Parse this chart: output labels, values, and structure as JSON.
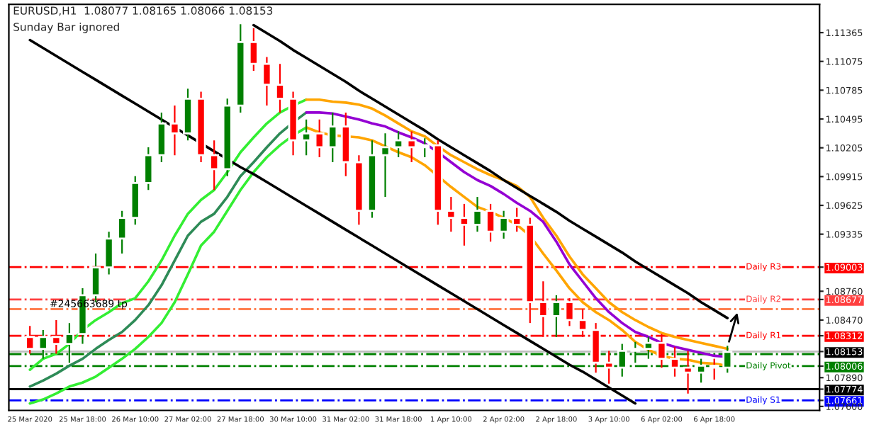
{
  "chart_data": {
    "type": "candlestick",
    "title": "EURUSD,H1  1.08077 1.08165 1.08066 1.08153",
    "subtitle": "Sunday Bar ignored",
    "categories": [
      "25 Mar 2020",
      null,
      null,
      null,
      "25 Mar 18:00",
      null,
      null,
      null,
      "26 Mar 10:00",
      null,
      null,
      null,
      "27 Mar 02:00",
      null,
      null,
      null,
      "27 Mar 18:00",
      null,
      null,
      null,
      "30 Mar 10:00",
      null,
      null,
      null,
      "31 Mar 02:00",
      null,
      null,
      null,
      "31 Mar 18:00",
      null,
      null,
      null,
      "1 Apr 10:00",
      null,
      null,
      null,
      "2 Apr 02:00",
      null,
      null,
      null,
      "2 Apr 18:00",
      null,
      null,
      null,
      "3 Apr 10:00",
      null,
      null,
      null,
      "6 Apr 02:00",
      null,
      null,
      null,
      "6 Apr 18:00",
      null
    ],
    "ohlc": [
      [
        1.083,
        1.0841,
        1.0813,
        1.0818
      ],
      [
        1.0818,
        1.0837,
        1.0808,
        1.083
      ],
      [
        1.083,
        1.0847,
        1.0813,
        1.0823
      ],
      [
        1.0823,
        1.0844,
        1.0804,
        1.0833
      ],
      [
        1.0833,
        1.0879,
        1.0823,
        1.0872
      ],
      [
        1.0872,
        1.0914,
        1.0865,
        1.09
      ],
      [
        1.09,
        1.0936,
        1.0893,
        1.0929
      ],
      [
        1.0929,
        1.0957,
        1.0914,
        1.095
      ],
      [
        1.095,
        1.0992,
        1.0943,
        1.0985
      ],
      [
        1.0985,
        1.1021,
        1.0978,
        1.1013
      ],
      [
        1.1013,
        1.1056,
        1.1006,
        1.1045
      ],
      [
        1.1045,
        1.1063,
        1.1013,
        1.1035
      ],
      [
        1.1035,
        1.108,
        1.1028,
        1.107
      ],
      [
        1.107,
        1.1077,
        1.1006,
        1.1013
      ],
      [
        1.1013,
        1.1028,
        1.0978,
        1.0999
      ],
      [
        1.0999,
        1.107,
        1.0992,
        1.1063
      ],
      [
        1.1063,
        1.1145,
        1.1056,
        1.1127
      ],
      [
        1.1127,
        1.1141,
        1.1098,
        1.1105
      ],
      [
        1.1105,
        1.1112,
        1.1063,
        1.1084
      ],
      [
        1.1084,
        1.1105,
        1.1056,
        1.107
      ],
      [
        1.107,
        1.1077,
        1.1013,
        1.1028
      ],
      [
        1.1028,
        1.1049,
        1.1013,
        1.1035
      ],
      [
        1.1035,
        1.1049,
        1.1011,
        1.1021
      ],
      [
        1.1021,
        1.1056,
        1.1006,
        1.1042
      ],
      [
        1.1042,
        1.1056,
        1.0992,
        1.1006
      ],
      [
        1.1006,
        1.1013,
        1.0943,
        1.0957
      ],
      [
        1.0957,
        1.1028,
        1.095,
        1.1013
      ],
      [
        1.1013,
        1.1035,
        1.0971,
        1.1021
      ],
      [
        1.1021,
        1.1037,
        1.1011,
        1.1028
      ],
      [
        1.1028,
        1.1037,
        1.1006,
        1.1021
      ],
      [
        1.1021,
        1.103,
        1.1011,
        1.1023
      ],
      [
        1.1023,
        1.1028,
        1.0943,
        1.0957
      ],
      [
        1.0957,
        1.0971,
        1.0936,
        1.095
      ],
      [
        1.095,
        1.0964,
        1.0922,
        1.0943
      ],
      [
        1.0943,
        1.0971,
        1.0936,
        1.0957
      ],
      [
        1.0957,
        1.0964,
        1.0926,
        1.0936
      ],
      [
        1.0936,
        1.0957,
        1.0929,
        1.095
      ],
      [
        1.095,
        1.096,
        1.0936,
        1.0943
      ],
      [
        1.0943,
        1.095,
        1.0844,
        1.0865
      ],
      [
        1.0865,
        1.0886,
        1.083,
        1.0851
      ],
      [
        1.0851,
        1.0872,
        1.083,
        1.0865
      ],
      [
        1.0865,
        1.0869,
        1.0841,
        1.0847
      ],
      [
        1.0847,
        1.0858,
        1.083,
        1.0837
      ],
      [
        1.0837,
        1.0844,
        1.0794,
        1.0804
      ],
      [
        1.0804,
        1.0816,
        1.0783,
        1.0799
      ],
      [
        1.0799,
        1.0823,
        1.079,
        1.0816
      ],
      [
        1.0816,
        1.0825,
        1.0804,
        1.0818
      ],
      [
        1.0818,
        1.083,
        1.0808,
        1.0824
      ],
      [
        1.0824,
        1.0833,
        1.0799,
        1.0808
      ],
      [
        1.0808,
        1.082,
        1.079,
        1.0799
      ],
      [
        1.0799,
        1.0816,
        1.0773,
        1.0794
      ],
      [
        1.0794,
        1.0808,
        1.0784,
        1.0801
      ],
      [
        1.0801,
        1.0808,
        1.0787,
        1.0799
      ],
      [
        1.0799,
        1.0821,
        1.0794,
        1.0815
      ]
    ],
    "colors": [
      "#ff0000",
      "#008000",
      "#ff0000",
      "#008000",
      "#008000",
      "#008000",
      "#008000",
      "#008000",
      "#008000",
      "#008000",
      "#008000",
      "#ff0000",
      "#008000",
      "#ff0000",
      "#ff0000",
      "#008000",
      "#008000",
      "#ff0000",
      "#ff0000",
      "#ff0000",
      "#ff0000",
      "#008000",
      "#ff0000",
      "#008000",
      "#ff0000",
      "#ff0000",
      "#008000",
      "#008000",
      "#008000",
      "#ff0000",
      "#008000",
      "#ff0000",
      "#ff0000",
      "#ff0000",
      "#008000",
      "#ff0000",
      "#008000",
      "#ff0000",
      "#ff0000",
      "#ff0000",
      "#008000",
      "#ff0000",
      "#ff0000",
      "#ff0000",
      "#ff0000",
      "#008000",
      "#008000",
      "#008000",
      "#ff0000",
      "#ff0000",
      "#ff0000",
      "#008000",
      "#ff0000",
      "#008000"
    ],
    "series": [
      {
        "type": "line",
        "color": "#33ee33",
        "values": [
          1.0797,
          1.0808,
          1.0813,
          1.0823,
          1.0837,
          1.0847,
          1.0855,
          1.0864,
          1.0869,
          1.0886,
          1.0907,
          1.0932,
          1.0954,
          1.0968,
          1.0978,
          1.0996,
          1.1016,
          1.1031,
          1.1045,
          1.1056,
          1.1063,
          1.1069,
          null,
          null,
          null,
          null,
          null,
          null,
          null,
          null,
          null,
          null,
          null,
          null,
          null,
          null,
          null,
          null,
          null,
          null,
          null,
          null,
          null,
          null,
          null,
          null,
          null,
          null,
          null,
          null,
          null,
          null,
          null,
          null
        ]
      },
      {
        "type": "line",
        "color": "#2e8b57",
        "values": [
          1.078,
          1.0786,
          1.0793,
          1.0801,
          1.0808,
          1.0818,
          1.0827,
          1.0835,
          1.0847,
          1.0862,
          1.0882,
          1.0907,
          1.0932,
          1.0946,
          1.0954,
          1.0971,
          1.0992,
          1.1006,
          1.1021,
          1.1035,
          1.1046,
          1.1056,
          null,
          null,
          null,
          null,
          null,
          null,
          null,
          null,
          null,
          null,
          null,
          null,
          null,
          null,
          null,
          null,
          null,
          null,
          null,
          null,
          null,
          null,
          null,
          null,
          null,
          null,
          null,
          null,
          null,
          null,
          null,
          null
        ]
      },
      {
        "type": "line",
        "color": "#33ee33",
        "values": [
          1.0763,
          1.0767,
          1.0773,
          1.078,
          1.0784,
          1.079,
          1.0799,
          1.0808,
          1.0818,
          1.083,
          1.0844,
          1.0865,
          1.0893,
          1.0922,
          1.0936,
          1.0957,
          1.0978,
          1.0996,
          1.1011,
          1.1023,
          1.1033,
          1.1041,
          null,
          null,
          null,
          null,
          null,
          null,
          null,
          null,
          null,
          null,
          null,
          null,
          null,
          null,
          null,
          null,
          null,
          null,
          null,
          null,
          null,
          null,
          null,
          null,
          null,
          null,
          null,
          null,
          null,
          null,
          null,
          null
        ]
      },
      {
        "type": "line",
        "color": "#ffa500",
        "values": [
          null,
          null,
          null,
          null,
          null,
          null,
          null,
          null,
          null,
          null,
          null,
          null,
          null,
          null,
          null,
          null,
          null,
          null,
          null,
          null,
          null,
          1.1069,
          1.1069,
          1.1067,
          1.1066,
          1.1064,
          1.106,
          1.1053,
          1.1045,
          1.1037,
          1.1032,
          1.1022,
          1.1013,
          1.1006,
          1.0999,
          1.0993,
          1.0988,
          1.0982,
          1.0971,
          1.095,
          1.0932,
          1.0911,
          1.0893,
          1.0879,
          1.0865,
          1.0855,
          1.0847,
          1.084,
          1.0834,
          1.083,
          1.0827,
          1.0824,
          1.0821,
          1.0818
        ]
      },
      {
        "type": "line",
        "color": "#9400d3",
        "values": [
          null,
          null,
          null,
          null,
          null,
          null,
          null,
          null,
          null,
          null,
          null,
          null,
          null,
          null,
          null,
          null,
          null,
          null,
          null,
          null,
          null,
          1.1056,
          1.1056,
          1.1055,
          1.1052,
          1.1049,
          1.1045,
          1.1042,
          1.1036,
          1.1031,
          1.1025,
          1.1016,
          1.1006,
          1.0996,
          1.0988,
          1.0982,
          1.0974,
          1.0965,
          1.0957,
          1.0946,
          1.0926,
          1.0903,
          1.0886,
          1.0869,
          1.0855,
          1.0844,
          1.0835,
          1.083,
          1.0824,
          1.082,
          1.0817,
          1.0814,
          1.0811,
          1.081
        ]
      },
      {
        "type": "line",
        "color": "#ffa500",
        "values": [
          null,
          null,
          null,
          null,
          null,
          null,
          null,
          null,
          null,
          null,
          null,
          null,
          null,
          null,
          null,
          null,
          null,
          null,
          null,
          null,
          null,
          1.1041,
          1.1036,
          1.1033,
          1.1032,
          1.1031,
          1.1028,
          1.1022,
          1.1016,
          1.1011,
          1.1003,
          1.0992,
          1.0981,
          1.0971,
          1.0961,
          1.0956,
          1.095,
          1.0943,
          1.0932,
          1.0914,
          1.0897,
          1.0879,
          1.0865,
          1.0855,
          1.0847,
          1.0837,
          1.0825,
          1.0817,
          1.0811,
          1.0808,
          1.0807,
          1.0804,
          1.0803,
          1.0801
        ]
      },
      {
        "type": "line",
        "color": "#000000",
        "values": [
          null,
          null,
          null,
          null,
          null,
          null,
          null,
          null,
          null,
          null,
          null,
          null,
          null,
          null,
          null,
          null,
          null,
          1.1144,
          1.1136,
          1.1128,
          1.1119,
          1.1111,
          1.1103,
          1.1095,
          1.1087,
          1.1078,
          1.107,
          1.1062,
          1.1054,
          1.1046,
          1.1038,
          1.1029,
          1.1021,
          1.1013,
          1.1005,
          1.0997,
          1.0988,
          1.098,
          1.0972,
          1.0964,
          1.0956,
          1.0947,
          1.0939,
          1.0931,
          1.0923,
          1.0915,
          1.0906,
          1.0898,
          1.089,
          1.0882,
          1.0874,
          1.0865,
          1.0857,
          1.0849
        ]
      },
      {
        "type": "line",
        "color": "#000000",
        "values": [
          1.1129,
          1.1121,
          1.1113,
          1.1105,
          1.1097,
          1.1089,
          1.1081,
          1.1073,
          1.1065,
          1.1057,
          1.1049,
          1.1041,
          1.1033,
          1.1025,
          1.1017,
          1.1009,
          1.1001,
          1.0994,
          1.0986,
          1.0978,
          1.097,
          1.0962,
          1.0954,
          1.0946,
          1.0938,
          1.093,
          1.0922,
          1.0914,
          1.0906,
          1.0898,
          1.089,
          1.0882,
          1.0874,
          1.0866,
          1.0858,
          1.085,
          1.0842,
          1.0834,
          1.0826,
          1.0818,
          1.081,
          1.0802,
          1.0795,
          1.0787,
          1.0779,
          1.0771,
          1.0763,
          null,
          null,
          null,
          null,
          null,
          null,
          null
        ]
      }
    ],
    "ylim": [
      1.0756,
      1.1165
    ],
    "yticks": [
      1.11365,
      1.11075,
      1.10785,
      1.10495,
      1.10205,
      1.09915,
      1.09625,
      1.09335,
      {
        "value": 1.0876,
        "label": "1.08760"
      },
      {
        "value": 1.0847,
        "label": "1.08470"
      },
      {
        "value": 1.0789,
        "label": "1.07890"
      },
      {
        "value": 1.09003,
        "label": "1.09003"
      },
      {
        "value": 1.08677,
        "label": "1.08677"
      },
      {
        "value": 1.08312,
        "label": "1.08312"
      },
      {
        "value": 1.08153,
        "label": "1.08153"
      },
      {
        "value": 1.08006,
        "label": "1.08006"
      },
      {
        "value": 1.07774,
        "label": "1.07774"
      },
      {
        "value": 1.07661,
        "label": "1.07661"
      },
      {
        "value": 1.076,
        "label": "1.07600"
      }
    ],
    "ref_lines": [
      {
        "axis": "y",
        "value": 1.09003,
        "label": "Daily R3",
        "color": "#ff0000",
        "line_style": "dashdot"
      },
      {
        "axis": "y",
        "value": 1.08677,
        "label": "Daily R2",
        "color": "#ff4040",
        "line_style": "dashdot"
      },
      {
        "axis": "y",
        "value": 1.0858,
        "label": "#245663689 tp",
        "color": "#ff7f50",
        "line_style": "dashdot"
      },
      {
        "axis": "y",
        "value": 1.08312,
        "label": "Daily R1",
        "color": "#ff0000",
        "line_style": "dashdot"
      },
      {
        "axis": "y",
        "value": 1.08153,
        "color": "#c0c0c0",
        "line_style": "solid"
      },
      {
        "axis": "y",
        "value": 1.08127,
        "color": "#008000",
        "line_style": "dashdot"
      },
      {
        "axis": "y",
        "value": 1.08006,
        "label": "Daily Pivot",
        "color": "#008000",
        "line_style": "dashdot"
      },
      {
        "axis": "y",
        "value": 1.07774,
        "color": "#000000",
        "line_style": "solid"
      },
      {
        "axis": "y",
        "value": 1.07661,
        "label": "Daily S1",
        "color": "#0000ff",
        "line_style": "dashdot"
      }
    ],
    "grid": false,
    "legend": false
  }
}
